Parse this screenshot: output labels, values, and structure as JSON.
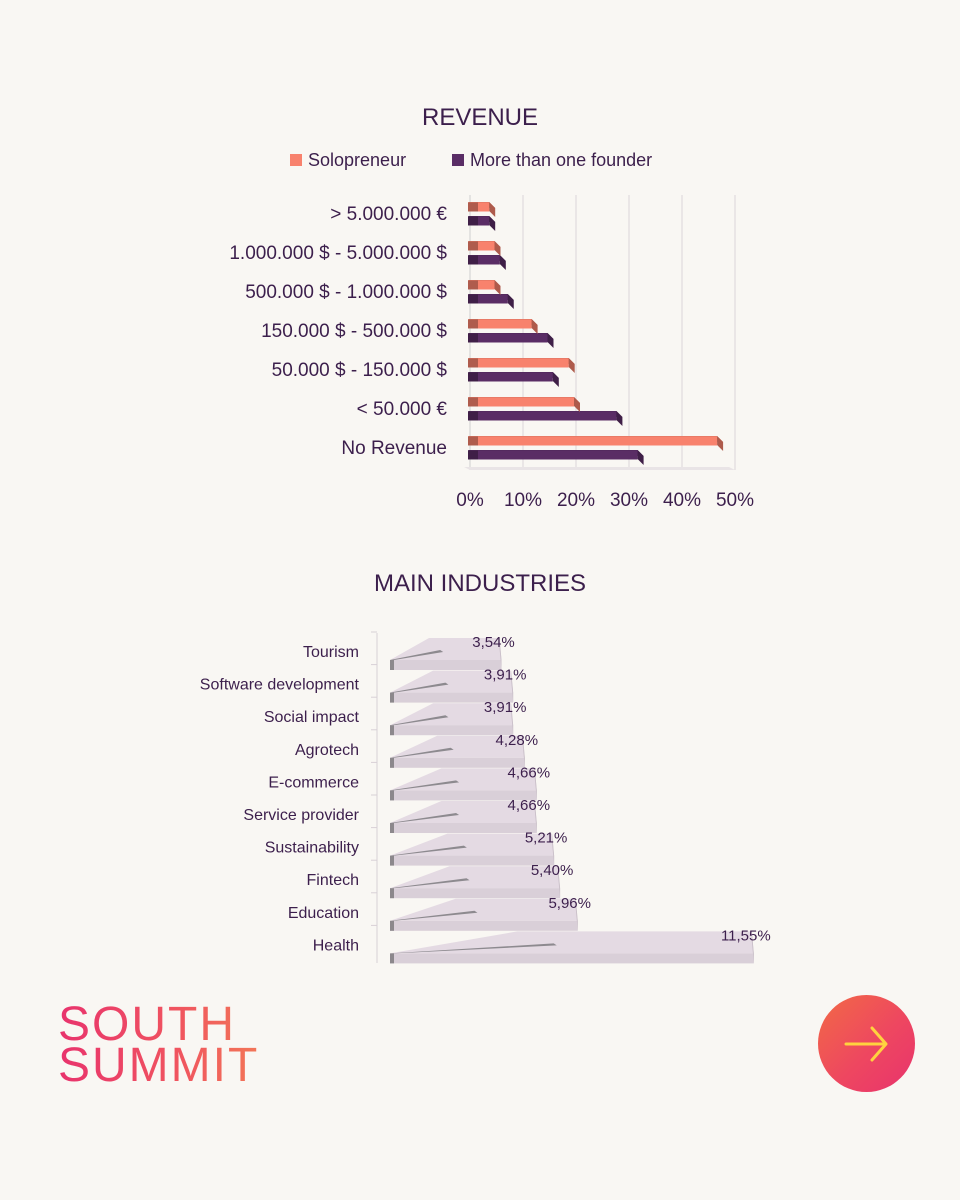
{
  "chart_data": [
    {
      "type": "bar",
      "orientation": "horizontal",
      "title": "REVENUE",
      "categories": [
        "> 5.000.000 €",
        "1.000.000 $ - 5.000.000 $",
        "500.000 $ - 1.000.000 $",
        "150.000 $ - 500.000 $",
        "50.000 $ - 150.000 $",
        "< 50.000 €",
        "No Revenue"
      ],
      "series": [
        {
          "name": "Solopreneur",
          "color": "#f8826d",
          "values": [
            4,
            5,
            5,
            12,
            19,
            20,
            47
          ]
        },
        {
          "name": "More than one founder",
          "color": "#5a2d65",
          "values": [
            4,
            6,
            7.5,
            15,
            16,
            28,
            32
          ]
        }
      ],
      "x_ticks": [
        "0%",
        "10%",
        "20%",
        "30%",
        "40%",
        "50%"
      ],
      "xlim": [
        0,
        50
      ],
      "grid": true,
      "legend": "top-center"
    },
    {
      "type": "bar",
      "orientation": "horizontal",
      "title": "MAIN INDUSTRIES",
      "categories": [
        "Tourism",
        "Software development",
        "Social impact",
        "Agrotech",
        "E-commerce",
        "Service provider",
        "Sustainability",
        "Fintech",
        "Education",
        "Health"
      ],
      "values": [
        3.54,
        3.91,
        3.91,
        4.28,
        4.66,
        4.66,
        5.21,
        5.4,
        5.96,
        11.55
      ],
      "data_labels": [
        "3,54%",
        "3,91%",
        "3,91%",
        "4,28%",
        "4,66%",
        "4,66%",
        "5,21%",
        "5,40%",
        "5,96%",
        "11,55%"
      ],
      "color": "#e3d9e2",
      "xlim": [
        0,
        12
      ]
    }
  ],
  "logo": {
    "line1": "SOUTH",
    "line2": "SUMMIT"
  },
  "next_button": {
    "icon": "arrow-right-icon"
  }
}
